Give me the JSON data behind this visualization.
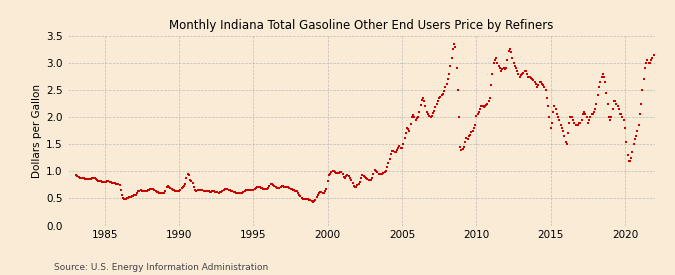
{
  "title": "Monthly Indiana Total Gasoline Other End Users Price by Refiners",
  "ylabel": "Dollars per Gallon",
  "source": "Source: U.S. Energy Information Administration",
  "bg_color": "#faebd7",
  "dot_color": "#cc0000",
  "grid_color": "#b0b0b0",
  "xlim": [
    1982.5,
    2022
  ],
  "ylim": [
    0.0,
    3.5
  ],
  "xticks": [
    1985,
    1990,
    1995,
    2000,
    2005,
    2010,
    2015,
    2020
  ],
  "yticks": [
    0.0,
    0.5,
    1.0,
    1.5,
    2.0,
    2.5,
    3.0,
    3.5
  ],
  "data": [
    [
      1983.08,
      0.93
    ],
    [
      1983.17,
      0.91
    ],
    [
      1983.25,
      0.895
    ],
    [
      1983.33,
      0.88
    ],
    [
      1983.42,
      0.875
    ],
    [
      1983.5,
      0.87
    ],
    [
      1983.58,
      0.868
    ],
    [
      1983.67,
      0.865
    ],
    [
      1983.75,
      0.862
    ],
    [
      1983.83,
      0.858
    ],
    [
      1983.92,
      0.855
    ],
    [
      1984.0,
      0.852
    ],
    [
      1984.08,
      0.86
    ],
    [
      1984.17,
      0.87
    ],
    [
      1984.25,
      0.875
    ],
    [
      1984.33,
      0.87
    ],
    [
      1984.42,
      0.855
    ],
    [
      1984.5,
      0.84
    ],
    [
      1984.58,
      0.83
    ],
    [
      1984.67,
      0.82
    ],
    [
      1984.75,
      0.815
    ],
    [
      1984.83,
      0.81
    ],
    [
      1984.92,
      0.808
    ],
    [
      1985.0,
      0.805
    ],
    [
      1985.08,
      0.808
    ],
    [
      1985.17,
      0.812
    ],
    [
      1985.25,
      0.815
    ],
    [
      1985.33,
      0.81
    ],
    [
      1985.42,
      0.8
    ],
    [
      1985.5,
      0.79
    ],
    [
      1985.58,
      0.782
    ],
    [
      1985.67,
      0.775
    ],
    [
      1985.75,
      0.77
    ],
    [
      1985.83,
      0.768
    ],
    [
      1985.92,
      0.762
    ],
    [
      1986.0,
      0.75
    ],
    [
      1986.08,
      0.66
    ],
    [
      1986.17,
      0.57
    ],
    [
      1986.25,
      0.5
    ],
    [
      1986.33,
      0.48
    ],
    [
      1986.42,
      0.488
    ],
    [
      1986.5,
      0.5
    ],
    [
      1986.58,
      0.51
    ],
    [
      1986.67,
      0.52
    ],
    [
      1986.75,
      0.53
    ],
    [
      1986.83,
      0.54
    ],
    [
      1986.92,
      0.548
    ],
    [
      1987.0,
      0.555
    ],
    [
      1987.08,
      0.565
    ],
    [
      1987.17,
      0.6
    ],
    [
      1987.25,
      0.63
    ],
    [
      1987.33,
      0.645
    ],
    [
      1987.42,
      0.65
    ],
    [
      1987.5,
      0.645
    ],
    [
      1987.58,
      0.638
    ],
    [
      1987.67,
      0.632
    ],
    [
      1987.75,
      0.638
    ],
    [
      1987.83,
      0.645
    ],
    [
      1987.92,
      0.652
    ],
    [
      1988.0,
      0.658
    ],
    [
      1988.08,
      0.665
    ],
    [
      1988.17,
      0.67
    ],
    [
      1988.25,
      0.665
    ],
    [
      1988.33,
      0.652
    ],
    [
      1988.42,
      0.638
    ],
    [
      1988.5,
      0.625
    ],
    [
      1988.58,
      0.615
    ],
    [
      1988.67,
      0.608
    ],
    [
      1988.75,
      0.602
    ],
    [
      1988.83,
      0.598
    ],
    [
      1988.92,
      0.595
    ],
    [
      1989.0,
      0.598
    ],
    [
      1989.08,
      0.635
    ],
    [
      1989.17,
      0.71
    ],
    [
      1989.25,
      0.725
    ],
    [
      1989.33,
      0.718
    ],
    [
      1989.42,
      0.7
    ],
    [
      1989.5,
      0.68
    ],
    [
      1989.58,
      0.662
    ],
    [
      1989.67,
      0.648
    ],
    [
      1989.75,
      0.638
    ],
    [
      1989.83,
      0.632
    ],
    [
      1989.92,
      0.628
    ],
    [
      1990.0,
      0.632
    ],
    [
      1990.08,
      0.658
    ],
    [
      1990.17,
      0.695
    ],
    [
      1990.25,
      0.718
    ],
    [
      1990.33,
      0.732
    ],
    [
      1990.42,
      0.762
    ],
    [
      1990.5,
      0.88
    ],
    [
      1990.58,
      0.948
    ],
    [
      1990.67,
      0.925
    ],
    [
      1990.75,
      0.848
    ],
    [
      1990.83,
      0.818
    ],
    [
      1990.92,
      0.778
    ],
    [
      1991.0,
      0.712
    ],
    [
      1991.08,
      0.66
    ],
    [
      1991.17,
      0.642
    ],
    [
      1991.25,
      0.648
    ],
    [
      1991.33,
      0.655
    ],
    [
      1991.42,
      0.662
    ],
    [
      1991.5,
      0.66
    ],
    [
      1991.58,
      0.652
    ],
    [
      1991.67,
      0.645
    ],
    [
      1991.75,
      0.64
    ],
    [
      1991.83,
      0.638
    ],
    [
      1991.92,
      0.632
    ],
    [
      1992.0,
      0.628
    ],
    [
      1992.08,
      0.625
    ],
    [
      1992.17,
      0.625
    ],
    [
      1992.25,
      0.628
    ],
    [
      1992.33,
      0.63
    ],
    [
      1992.42,
      0.622
    ],
    [
      1992.5,
      0.615
    ],
    [
      1992.58,
      0.61
    ],
    [
      1992.67,
      0.608
    ],
    [
      1992.75,
      0.615
    ],
    [
      1992.83,
      0.625
    ],
    [
      1992.92,
      0.645
    ],
    [
      1993.0,
      0.658
    ],
    [
      1993.08,
      0.668
    ],
    [
      1993.17,
      0.675
    ],
    [
      1993.25,
      0.668
    ],
    [
      1993.33,
      0.658
    ],
    [
      1993.42,
      0.648
    ],
    [
      1993.5,
      0.638
    ],
    [
      1993.58,
      0.628
    ],
    [
      1993.67,
      0.62
    ],
    [
      1993.75,
      0.612
    ],
    [
      1993.83,
      0.608
    ],
    [
      1993.92,
      0.602
    ],
    [
      1994.0,
      0.598
    ],
    [
      1994.08,
      0.598
    ],
    [
      1994.17,
      0.6
    ],
    [
      1994.25,
      0.608
    ],
    [
      1994.33,
      0.618
    ],
    [
      1994.42,
      0.635
    ],
    [
      1994.5,
      0.648
    ],
    [
      1994.58,
      0.652
    ],
    [
      1994.67,
      0.65
    ],
    [
      1994.75,
      0.648
    ],
    [
      1994.83,
      0.648
    ],
    [
      1994.92,
      0.65
    ],
    [
      1995.0,
      0.658
    ],
    [
      1995.08,
      0.668
    ],
    [
      1995.17,
      0.698
    ],
    [
      1995.25,
      0.718
    ],
    [
      1995.33,
      0.718
    ],
    [
      1995.42,
      0.715
    ],
    [
      1995.5,
      0.7
    ],
    [
      1995.58,
      0.688
    ],
    [
      1995.67,
      0.678
    ],
    [
      1995.75,
      0.67
    ],
    [
      1995.83,
      0.668
    ],
    [
      1995.92,
      0.675
    ],
    [
      1996.0,
      0.695
    ],
    [
      1996.08,
      0.728
    ],
    [
      1996.17,
      0.758
    ],
    [
      1996.25,
      0.762
    ],
    [
      1996.33,
      0.742
    ],
    [
      1996.42,
      0.722
    ],
    [
      1996.5,
      0.71
    ],
    [
      1996.58,
      0.7
    ],
    [
      1996.67,
      0.692
    ],
    [
      1996.75,
      0.698
    ],
    [
      1996.83,
      0.702
    ],
    [
      1996.92,
      0.728
    ],
    [
      1997.0,
      0.732
    ],
    [
      1997.08,
      0.718
    ],
    [
      1997.17,
      0.718
    ],
    [
      1997.25,
      0.712
    ],
    [
      1997.33,
      0.702
    ],
    [
      1997.42,
      0.692
    ],
    [
      1997.5,
      0.68
    ],
    [
      1997.58,
      0.668
    ],
    [
      1997.67,
      0.658
    ],
    [
      1997.75,
      0.648
    ],
    [
      1997.83,
      0.638
    ],
    [
      1997.92,
      0.628
    ],
    [
      1998.0,
      0.598
    ],
    [
      1998.08,
      0.565
    ],
    [
      1998.17,
      0.535
    ],
    [
      1998.25,
      0.508
    ],
    [
      1998.33,
      0.495
    ],
    [
      1998.42,
      0.492
    ],
    [
      1998.5,
      0.492
    ],
    [
      1998.58,
      0.49
    ],
    [
      1998.67,
      0.485
    ],
    [
      1998.75,
      0.478
    ],
    [
      1998.83,
      0.468
    ],
    [
      1998.92,
      0.452
    ],
    [
      1999.0,
      0.438
    ],
    [
      1999.08,
      0.445
    ],
    [
      1999.17,
      0.478
    ],
    [
      1999.25,
      0.518
    ],
    [
      1999.33,
      0.568
    ],
    [
      1999.42,
      0.608
    ],
    [
      1999.5,
      0.618
    ],
    [
      1999.58,
      0.615
    ],
    [
      1999.67,
      0.608
    ],
    [
      1999.75,
      0.608
    ],
    [
      1999.83,
      0.628
    ],
    [
      1999.92,
      0.668
    ],
    [
      2000.0,
      0.818
    ],
    [
      2000.08,
      0.928
    ],
    [
      2000.17,
      0.952
    ],
    [
      2000.25,
      0.978
    ],
    [
      2000.33,
      1.002
    ],
    [
      2000.42,
      1.0
    ],
    [
      2000.5,
      0.978
    ],
    [
      2000.58,
      0.968
    ],
    [
      2000.67,
      0.968
    ],
    [
      2000.75,
      0.968
    ],
    [
      2000.83,
      0.978
    ],
    [
      2000.92,
      0.978
    ],
    [
      2001.0,
      0.948
    ],
    [
      2001.08,
      0.898
    ],
    [
      2001.17,
      0.878
    ],
    [
      2001.25,
      0.908
    ],
    [
      2001.33,
      0.928
    ],
    [
      2001.42,
      0.918
    ],
    [
      2001.5,
      0.878
    ],
    [
      2001.58,
      0.838
    ],
    [
      2001.67,
      0.778
    ],
    [
      2001.75,
      0.728
    ],
    [
      2001.83,
      0.718
    ],
    [
      2001.92,
      0.718
    ],
    [
      2002.0,
      0.738
    ],
    [
      2002.08,
      0.758
    ],
    [
      2002.17,
      0.798
    ],
    [
      2002.25,
      0.878
    ],
    [
      2002.33,
      0.928
    ],
    [
      2002.42,
      0.918
    ],
    [
      2002.5,
      0.898
    ],
    [
      2002.58,
      0.878
    ],
    [
      2002.67,
      0.858
    ],
    [
      2002.75,
      0.848
    ],
    [
      2002.83,
      0.838
    ],
    [
      2002.92,
      0.838
    ],
    [
      2003.0,
      0.868
    ],
    [
      2003.08,
      0.958
    ],
    [
      2003.17,
      1.028
    ],
    [
      2003.25,
      1.002
    ],
    [
      2003.33,
      0.978
    ],
    [
      2003.42,
      0.958
    ],
    [
      2003.5,
      0.948
    ],
    [
      2003.58,
      0.948
    ],
    [
      2003.67,
      0.958
    ],
    [
      2003.75,
      0.968
    ],
    [
      2003.83,
      0.978
    ],
    [
      2003.92,
      1.0
    ],
    [
      2004.0,
      1.078
    ],
    [
      2004.08,
      1.148
    ],
    [
      2004.17,
      1.218
    ],
    [
      2004.25,
      1.318
    ],
    [
      2004.33,
      1.378
    ],
    [
      2004.42,
      1.368
    ],
    [
      2004.5,
      1.348
    ],
    [
      2004.58,
      1.358
    ],
    [
      2004.67,
      1.398
    ],
    [
      2004.75,
      1.438
    ],
    [
      2004.83,
      1.458
    ],
    [
      2004.92,
      1.438
    ],
    [
      2005.0,
      1.438
    ],
    [
      2005.08,
      1.498
    ],
    [
      2005.17,
      1.618
    ],
    [
      2005.25,
      1.698
    ],
    [
      2005.33,
      1.798
    ],
    [
      2005.42,
      1.778
    ],
    [
      2005.5,
      1.748
    ],
    [
      2005.58,
      1.878
    ],
    [
      2005.67,
      1.998
    ],
    [
      2005.75,
      2.038
    ],
    [
      2005.83,
      1.998
    ],
    [
      2005.92,
      1.948
    ],
    [
      2006.0,
      1.978
    ],
    [
      2006.08,
      1.998
    ],
    [
      2006.17,
      2.098
    ],
    [
      2006.25,
      2.218
    ],
    [
      2006.33,
      2.318
    ],
    [
      2006.42,
      2.348
    ],
    [
      2006.5,
      2.298
    ],
    [
      2006.58,
      2.198
    ],
    [
      2006.67,
      2.098
    ],
    [
      2006.75,
      2.048
    ],
    [
      2006.83,
      2.018
    ],
    [
      2006.92,
      2.0
    ],
    [
      2007.0,
      2.018
    ],
    [
      2007.08,
      2.078
    ],
    [
      2007.17,
      2.118
    ],
    [
      2007.25,
      2.178
    ],
    [
      2007.33,
      2.238
    ],
    [
      2007.42,
      2.298
    ],
    [
      2007.5,
      2.348
    ],
    [
      2007.58,
      2.378
    ],
    [
      2007.67,
      2.398
    ],
    [
      2007.75,
      2.418
    ],
    [
      2007.83,
      2.478
    ],
    [
      2007.92,
      2.548
    ],
    [
      2008.0,
      2.618
    ],
    [
      2008.08,
      2.698
    ],
    [
      2008.17,
      2.798
    ],
    [
      2008.25,
      2.948
    ],
    [
      2008.33,
      3.098
    ],
    [
      2008.42,
      3.248
    ],
    [
      2008.5,
      3.348
    ],
    [
      2008.58,
      3.298
    ],
    [
      2008.67,
      2.898
    ],
    [
      2008.75,
      2.498
    ],
    [
      2008.83,
      1.998
    ],
    [
      2008.92,
      1.448
    ],
    [
      2009.0,
      1.398
    ],
    [
      2009.08,
      1.418
    ],
    [
      2009.17,
      1.448
    ],
    [
      2009.25,
      1.548
    ],
    [
      2009.33,
      1.618
    ],
    [
      2009.42,
      1.598
    ],
    [
      2009.5,
      1.648
    ],
    [
      2009.58,
      1.678
    ],
    [
      2009.67,
      1.718
    ],
    [
      2009.75,
      1.748
    ],
    [
      2009.83,
      1.798
    ],
    [
      2009.92,
      1.848
    ],
    [
      2010.0,
      2.018
    ],
    [
      2010.08,
      2.048
    ],
    [
      2010.17,
      2.098
    ],
    [
      2010.25,
      2.148
    ],
    [
      2010.33,
      2.198
    ],
    [
      2010.42,
      2.198
    ],
    [
      2010.5,
      2.178
    ],
    [
      2010.58,
      2.198
    ],
    [
      2010.67,
      2.218
    ],
    [
      2010.75,
      2.248
    ],
    [
      2010.83,
      2.298
    ],
    [
      2010.92,
      2.348
    ],
    [
      2011.0,
      2.598
    ],
    [
      2011.08,
      2.798
    ],
    [
      2011.17,
      2.998
    ],
    [
      2011.25,
      3.048
    ],
    [
      2011.33,
      3.098
    ],
    [
      2011.42,
      2.998
    ],
    [
      2011.5,
      2.948
    ],
    [
      2011.58,
      2.898
    ],
    [
      2011.67,
      2.848
    ],
    [
      2011.75,
      2.878
    ],
    [
      2011.83,
      2.898
    ],
    [
      2011.92,
      2.878
    ],
    [
      2012.0,
      2.898
    ],
    [
      2012.08,
      3.048
    ],
    [
      2012.17,
      3.218
    ],
    [
      2012.25,
      3.248
    ],
    [
      2012.33,
      3.198
    ],
    [
      2012.42,
      3.098
    ],
    [
      2012.5,
      2.998
    ],
    [
      2012.58,
      2.948
    ],
    [
      2012.67,
      2.898
    ],
    [
      2012.75,
      2.848
    ],
    [
      2012.83,
      2.798
    ],
    [
      2012.92,
      2.748
    ],
    [
      2013.0,
      2.778
    ],
    [
      2013.08,
      2.798
    ],
    [
      2013.17,
      2.818
    ],
    [
      2013.25,
      2.848
    ],
    [
      2013.33,
      2.848
    ],
    [
      2013.42,
      2.798
    ],
    [
      2013.5,
      2.748
    ],
    [
      2013.58,
      2.748
    ],
    [
      2013.67,
      2.718
    ],
    [
      2013.75,
      2.698
    ],
    [
      2013.83,
      2.678
    ],
    [
      2013.92,
      2.648
    ],
    [
      2014.0,
      2.618
    ],
    [
      2014.08,
      2.548
    ],
    [
      2014.17,
      2.598
    ],
    [
      2014.25,
      2.648
    ],
    [
      2014.33,
      2.648
    ],
    [
      2014.42,
      2.618
    ],
    [
      2014.5,
      2.598
    ],
    [
      2014.58,
      2.548
    ],
    [
      2014.67,
      2.498
    ],
    [
      2014.75,
      2.348
    ],
    [
      2014.83,
      2.198
    ],
    [
      2014.92,
      1.998
    ],
    [
      2015.0,
      1.798
    ],
    [
      2015.08,
      1.898
    ],
    [
      2015.17,
      2.098
    ],
    [
      2015.25,
      2.198
    ],
    [
      2015.33,
      2.148
    ],
    [
      2015.42,
      2.048
    ],
    [
      2015.5,
      1.998
    ],
    [
      2015.58,
      1.948
    ],
    [
      2015.67,
      1.848
    ],
    [
      2015.75,
      1.798
    ],
    [
      2015.83,
      1.748
    ],
    [
      2015.92,
      1.648
    ],
    [
      2016.0,
      1.548
    ],
    [
      2016.08,
      1.498
    ],
    [
      2016.17,
      1.698
    ],
    [
      2016.25,
      1.898
    ],
    [
      2016.33,
      1.998
    ],
    [
      2016.42,
      1.998
    ],
    [
      2016.5,
      1.948
    ],
    [
      2016.58,
      1.898
    ],
    [
      2016.67,
      1.848
    ],
    [
      2016.75,
      1.848
    ],
    [
      2016.83,
      1.848
    ],
    [
      2016.92,
      1.898
    ],
    [
      2017.0,
      1.898
    ],
    [
      2017.08,
      1.948
    ],
    [
      2017.17,
      2.048
    ],
    [
      2017.25,
      2.098
    ],
    [
      2017.33,
      2.048
    ],
    [
      2017.42,
      1.998
    ],
    [
      2017.5,
      1.898
    ],
    [
      2017.58,
      1.948
    ],
    [
      2017.67,
      1.998
    ],
    [
      2017.75,
      2.048
    ],
    [
      2017.83,
      2.048
    ],
    [
      2017.92,
      2.098
    ],
    [
      2018.0,
      2.148
    ],
    [
      2018.08,
      2.248
    ],
    [
      2018.17,
      2.398
    ],
    [
      2018.25,
      2.548
    ],
    [
      2018.33,
      2.648
    ],
    [
      2018.42,
      2.748
    ],
    [
      2018.5,
      2.798
    ],
    [
      2018.58,
      2.748
    ],
    [
      2018.67,
      2.648
    ],
    [
      2018.75,
      2.448
    ],
    [
      2018.83,
      2.248
    ],
    [
      2018.92,
      1.998
    ],
    [
      2019.0,
      1.948
    ],
    [
      2019.08,
      1.998
    ],
    [
      2019.17,
      2.148
    ],
    [
      2019.25,
      2.298
    ],
    [
      2019.33,
      2.298
    ],
    [
      2019.42,
      2.248
    ],
    [
      2019.5,
      2.198
    ],
    [
      2019.58,
      2.148
    ],
    [
      2019.67,
      2.048
    ],
    [
      2019.75,
      2.048
    ],
    [
      2019.83,
      1.998
    ],
    [
      2019.92,
      1.948
    ],
    [
      2020.0,
      1.798
    ],
    [
      2020.08,
      1.548
    ],
    [
      2020.17,
      1.298
    ],
    [
      2020.25,
      1.198
    ],
    [
      2020.33,
      1.198
    ],
    [
      2020.42,
      1.248
    ],
    [
      2020.5,
      1.348
    ],
    [
      2020.58,
      1.498
    ],
    [
      2020.67,
      1.598
    ],
    [
      2020.75,
      1.648
    ],
    [
      2020.83,
      1.748
    ],
    [
      2020.92,
      1.848
    ],
    [
      2021.0,
      2.048
    ],
    [
      2021.08,
      2.248
    ],
    [
      2021.17,
      2.498
    ],
    [
      2021.25,
      2.698
    ],
    [
      2021.33,
      2.898
    ],
    [
      2021.42,
      2.998
    ],
    [
      2021.5,
      3.048
    ],
    [
      2021.58,
      2.998
    ],
    [
      2021.67,
      2.998
    ],
    [
      2021.75,
      3.048
    ],
    [
      2021.83,
      3.098
    ],
    [
      2021.92,
      3.148
    ]
  ]
}
